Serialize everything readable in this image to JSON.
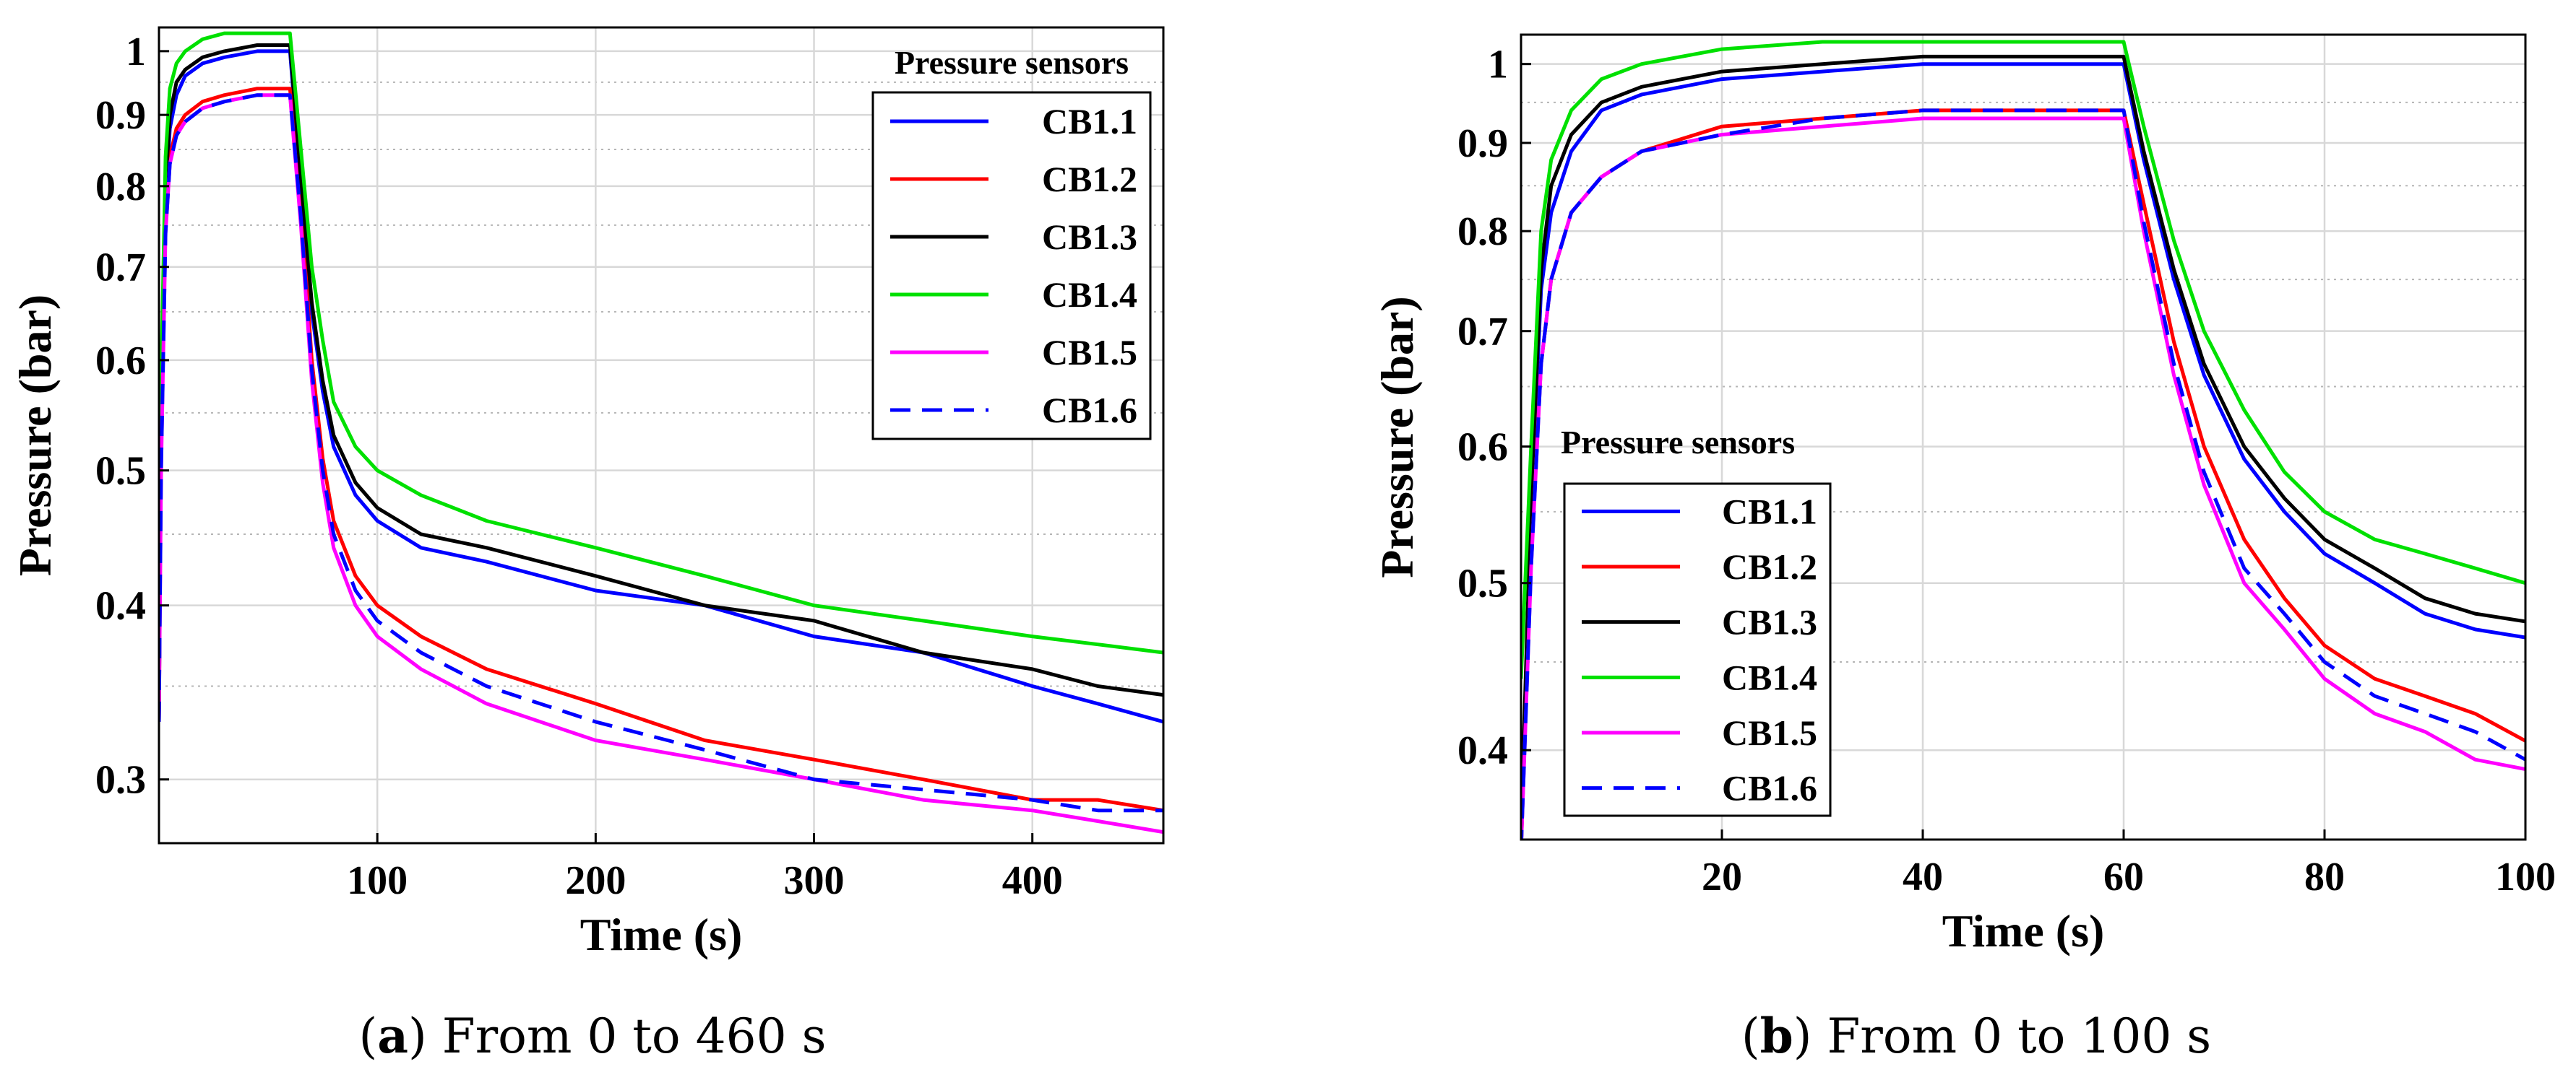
{
  "captions": [
    {
      "letter": "a",
      "open": "(",
      "close": ")",
      "text": " From 0 to 460 s"
    },
    {
      "letter": "b",
      "open": "(",
      "close": ")",
      "text": " From 0 to 100 s"
    }
  ],
  "colors": {
    "CB1.1": "#0000ff",
    "CB1.2": "#ff0000",
    "CB1.3": "#000000",
    "CB1.4": "#00e000",
    "CB1.5": "#ff00ff",
    "CB1.6": "#0000ff"
  },
  "chart_data": [
    {
      "type": "line",
      "panel": "a",
      "xlabel": "Time (s)",
      "ylabel": "Pressure (bar)",
      "xlim": [
        0,
        460
      ],
      "ylim": [
        0.27,
        1.04
      ],
      "yscale": "log",
      "grid": true,
      "x_ticks": [
        100,
        200,
        300,
        400
      ],
      "y_ticks": [
        0.3,
        0.4,
        0.5,
        0.6,
        0.7,
        0.8,
        0.9,
        1
      ],
      "y_tick_labels": [
        "0.3",
        "0.4",
        "0.5",
        "0.6",
        "0.7",
        "0.8",
        "0.9",
        "1"
      ],
      "legend_title": "Pressure sensors",
      "legend_position": "top-right",
      "series": [
        {
          "name": "CB1.1",
          "dash": false,
          "x": [
            0,
            1,
            3,
            5,
            8,
            12,
            20,
            30,
            45,
            60,
            65,
            70,
            75,
            80,
            90,
            100,
            120,
            150,
            200,
            250,
            300,
            350,
            400,
            430,
            460
          ],
          "y": [
            0.33,
            0.55,
            0.78,
            0.88,
            0.93,
            0.96,
            0.98,
            0.99,
            1.0,
            1.0,
            0.8,
            0.65,
            0.57,
            0.52,
            0.48,
            0.46,
            0.44,
            0.43,
            0.41,
            0.4,
            0.38,
            0.37,
            0.35,
            0.34,
            0.33
          ]
        },
        {
          "name": "CB1.2",
          "dash": false,
          "x": [
            0,
            1,
            3,
            5,
            8,
            12,
            20,
            30,
            45,
            60,
            65,
            70,
            75,
            80,
            90,
            100,
            120,
            150,
            200,
            250,
            300,
            350,
            400,
            430,
            460
          ],
          "y": [
            0.33,
            0.52,
            0.75,
            0.84,
            0.88,
            0.9,
            0.92,
            0.93,
            0.94,
            0.94,
            0.78,
            0.6,
            0.51,
            0.46,
            0.42,
            0.4,
            0.38,
            0.36,
            0.34,
            0.32,
            0.31,
            0.3,
            0.29,
            0.29,
            0.285
          ]
        },
        {
          "name": "CB1.3",
          "dash": false,
          "x": [
            0,
            1,
            3,
            5,
            8,
            12,
            20,
            30,
            45,
            60,
            65,
            70,
            75,
            80,
            90,
            100,
            120,
            150,
            200,
            250,
            300,
            350,
            400,
            430,
            460
          ],
          "y": [
            0.33,
            0.56,
            0.8,
            0.9,
            0.95,
            0.97,
            0.99,
            1.0,
            1.01,
            1.01,
            0.81,
            0.66,
            0.58,
            0.53,
            0.49,
            0.47,
            0.45,
            0.44,
            0.42,
            0.4,
            0.39,
            0.37,
            0.36,
            0.35,
            0.345
          ]
        },
        {
          "name": "CB1.4",
          "dash": false,
          "x": [
            0,
            1,
            3,
            5,
            8,
            12,
            20,
            30,
            45,
            60,
            65,
            70,
            75,
            80,
            90,
            100,
            120,
            150,
            200,
            250,
            300,
            350,
            400,
            430,
            460
          ],
          "y": [
            0.38,
            0.58,
            0.84,
            0.94,
            0.98,
            1.0,
            1.02,
            1.03,
            1.03,
            1.03,
            0.85,
            0.7,
            0.62,
            0.56,
            0.52,
            0.5,
            0.48,
            0.46,
            0.44,
            0.42,
            0.4,
            0.39,
            0.38,
            0.375,
            0.37
          ]
        },
        {
          "name": "CB1.5",
          "dash": false,
          "x": [
            0,
            1,
            3,
            5,
            8,
            12,
            20,
            30,
            45,
            60,
            65,
            70,
            75,
            80,
            90,
            100,
            120,
            150,
            200,
            250,
            300,
            350,
            400,
            430,
            460
          ],
          "y": [
            0.33,
            0.5,
            0.74,
            0.83,
            0.87,
            0.89,
            0.91,
            0.92,
            0.93,
            0.93,
            0.75,
            0.58,
            0.49,
            0.44,
            0.4,
            0.38,
            0.36,
            0.34,
            0.32,
            0.31,
            0.3,
            0.29,
            0.285,
            0.28,
            0.275
          ]
        },
        {
          "name": "CB1.6",
          "dash": true,
          "x": [
            0,
            1,
            3,
            5,
            8,
            12,
            20,
            30,
            45,
            60,
            65,
            70,
            75,
            80,
            90,
            100,
            120,
            150,
            200,
            250,
            300,
            350,
            400,
            430,
            460
          ],
          "y": [
            0.33,
            0.5,
            0.74,
            0.83,
            0.87,
            0.89,
            0.91,
            0.92,
            0.93,
            0.93,
            0.76,
            0.59,
            0.5,
            0.45,
            0.41,
            0.39,
            0.37,
            0.35,
            0.33,
            0.315,
            0.3,
            0.295,
            0.29,
            0.285,
            0.285
          ]
        }
      ]
    },
    {
      "type": "line",
      "panel": "b",
      "xlabel": "Time (s)",
      "ylabel": "Pressure (bar)",
      "xlim": [
        0,
        100
      ],
      "ylim": [
        0.355,
        1.04
      ],
      "yscale": "log",
      "grid": true,
      "x_ticks": [
        20,
        40,
        60,
        80,
        100
      ],
      "y_ticks": [
        0.4,
        0.5,
        0.6,
        0.7,
        0.8,
        0.9,
        1
      ],
      "y_tick_labels": [
        "0.4",
        "0.5",
        "0.6",
        "0.7",
        "0.8",
        "0.9",
        "1"
      ],
      "legend_title": "Pressure sensors",
      "legend_position": "bottom-left",
      "series": [
        {
          "name": "CB1.1",
          "dash": false,
          "x": [
            0,
            1,
            2,
            3,
            5,
            8,
            12,
            20,
            30,
            40,
            50,
            60,
            62,
            65,
            68,
            72,
            76,
            80,
            85,
            90,
            95,
            100
          ],
          "y": [
            0.35,
            0.55,
            0.74,
            0.82,
            0.89,
            0.94,
            0.96,
            0.98,
            0.99,
            1.0,
            1.0,
            1.0,
            0.88,
            0.75,
            0.66,
            0.59,
            0.55,
            0.52,
            0.5,
            0.48,
            0.47,
            0.465
          ]
        },
        {
          "name": "CB1.2",
          "dash": false,
          "x": [
            0,
            1,
            2,
            3,
            5,
            8,
            12,
            20,
            30,
            40,
            50,
            60,
            62,
            65,
            68,
            72,
            76,
            80,
            85,
            90,
            95,
            100
          ],
          "y": [
            0.35,
            0.52,
            0.67,
            0.75,
            0.82,
            0.86,
            0.89,
            0.92,
            0.93,
            0.94,
            0.94,
            0.94,
            0.83,
            0.69,
            0.6,
            0.53,
            0.49,
            0.46,
            0.44,
            0.43,
            0.42,
            0.405
          ]
        },
        {
          "name": "CB1.3",
          "dash": false,
          "x": [
            0,
            1,
            2,
            3,
            5,
            8,
            12,
            20,
            30,
            40,
            50,
            60,
            62,
            65,
            68,
            72,
            76,
            80,
            85,
            90,
            95,
            100
          ],
          "y": [
            0.36,
            0.56,
            0.76,
            0.85,
            0.91,
            0.95,
            0.97,
            0.99,
            1.0,
            1.01,
            1.01,
            1.01,
            0.89,
            0.76,
            0.67,
            0.6,
            0.56,
            0.53,
            0.51,
            0.49,
            0.48,
            0.475
          ]
        },
        {
          "name": "CB1.4",
          "dash": false,
          "x": [
            0,
            1,
            2,
            3,
            5,
            8,
            12,
            20,
            30,
            40,
            50,
            60,
            62,
            65,
            68,
            72,
            76,
            80,
            85,
            90,
            95,
            100
          ],
          "y": [
            0.44,
            0.6,
            0.8,
            0.88,
            0.94,
            0.98,
            1.0,
            1.02,
            1.03,
            1.03,
            1.03,
            1.03,
            0.92,
            0.79,
            0.7,
            0.63,
            0.58,
            0.55,
            0.53,
            0.52,
            0.51,
            0.5
          ]
        },
        {
          "name": "CB1.5",
          "dash": false,
          "x": [
            0,
            1,
            2,
            3,
            5,
            8,
            12,
            20,
            30,
            40,
            50,
            60,
            62,
            65,
            68,
            72,
            76,
            80,
            85,
            90,
            95,
            100
          ],
          "y": [
            0.35,
            0.51,
            0.67,
            0.75,
            0.82,
            0.86,
            0.89,
            0.91,
            0.92,
            0.93,
            0.93,
            0.93,
            0.8,
            0.66,
            0.57,
            0.5,
            0.47,
            0.44,
            0.42,
            0.41,
            0.395,
            0.39
          ]
        },
        {
          "name": "CB1.6",
          "dash": true,
          "x": [
            0,
            1,
            2,
            3,
            5,
            8,
            12,
            20,
            30,
            40,
            50,
            60,
            62,
            65,
            68,
            72,
            76,
            80,
            85,
            90,
            95,
            100
          ],
          "y": [
            0.35,
            0.51,
            0.67,
            0.75,
            0.82,
            0.86,
            0.89,
            0.91,
            0.93,
            0.94,
            0.94,
            0.94,
            0.81,
            0.67,
            0.58,
            0.51,
            0.48,
            0.45,
            0.43,
            0.42,
            0.41,
            0.395
          ]
        }
      ]
    }
  ]
}
